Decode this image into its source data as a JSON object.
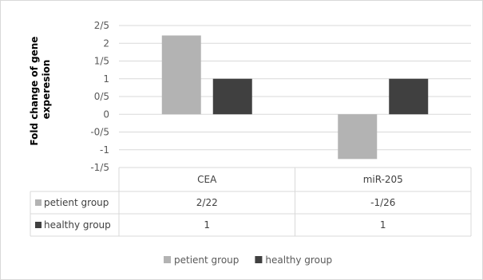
{
  "chart_data": {
    "type": "bar",
    "ylabel_lines": [
      "Fold change of gene",
      "experesion"
    ],
    "categories": [
      "CEA",
      "miR-205"
    ],
    "series": [
      {
        "name": "petient group",
        "values": [
          2.22,
          -1.26
        ],
        "labels": [
          "2/22",
          "-1/26"
        ],
        "color": "#b3b3b3"
      },
      {
        "name": "healthy group",
        "values": [
          1,
          1
        ],
        "labels": [
          "1",
          "1"
        ],
        "color": "#404040"
      }
    ],
    "yticks": [
      {
        "value": 2.5,
        "label": "2/5"
      },
      {
        "value": 2,
        "label": "2"
      },
      {
        "value": 1.5,
        "label": "1/5"
      },
      {
        "value": 1,
        "label": "1"
      },
      {
        "value": 0.5,
        "label": "0/5"
      },
      {
        "value": 0,
        "label": "0"
      },
      {
        "value": -0.5,
        "label": "-0/5"
      },
      {
        "value": -1,
        "label": "-1"
      },
      {
        "value": -1.5,
        "label": "-1/5"
      }
    ],
    "ylim": [
      -1.5,
      2.5
    ],
    "grid": true,
    "legend_position": "bottom",
    "data_table": true
  }
}
